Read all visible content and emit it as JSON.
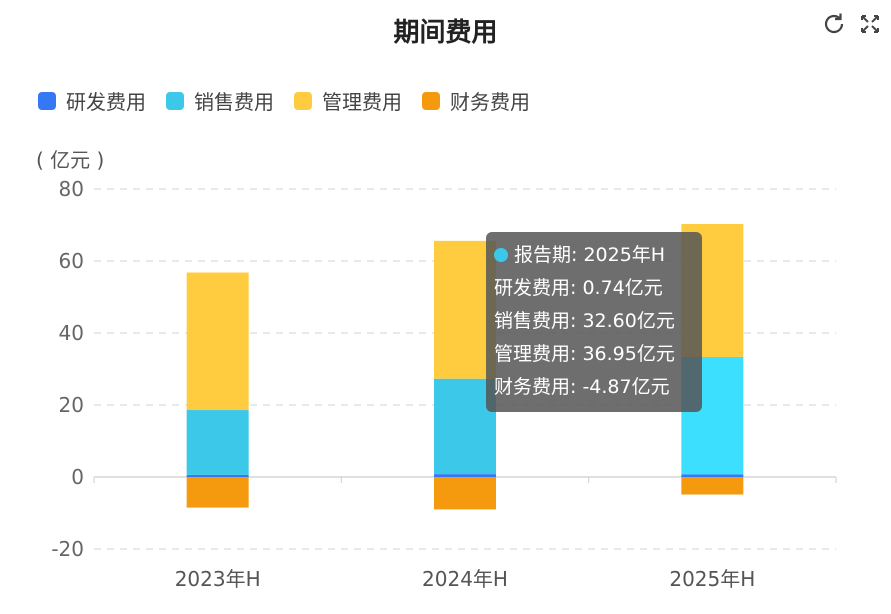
{
  "title": "期间费用",
  "unit_label": "( 亿元 )",
  "toolbar": {
    "refresh_icon": "refresh-icon",
    "fullscreen_icon": "fullscreen-icon"
  },
  "legend": [
    {
      "label": "研发费用",
      "color": "#3578F6"
    },
    {
      "label": "销售费用",
      "color": "#3CC8E8"
    },
    {
      "label": "管理费用",
      "color": "#FFCC40"
    },
    {
      "label": "财务费用",
      "color": "#F59A0F"
    }
  ],
  "tooltip": {
    "period": "报告期: 2025年H",
    "lines": [
      "研发费用: 0.74亿元",
      "销售费用: 32.60亿元",
      "管理费用: 36.95亿元",
      "财务费用: -4.87亿元"
    ],
    "dot_color": "#3CC8E8"
  },
  "chart_data": {
    "type": "bar",
    "stacked": true,
    "categories": [
      "2023年H",
      "2024年H",
      "2025年H"
    ],
    "ylim": [
      -20,
      80
    ],
    "yticks": [
      80,
      60,
      40,
      20,
      0,
      -20
    ],
    "ylabel": "( 亿元 )",
    "grid": true,
    "legend_position": "top-left",
    "highlighted_category": "2025年H",
    "series": [
      {
        "name": "研发费用",
        "values": [
          0.6,
          0.8,
          0.74
        ]
      },
      {
        "name": "销售费用",
        "values": [
          18.0,
          26.5,
          32.6
        ]
      },
      {
        "name": "管理费用",
        "values": [
          38.2,
          38.3,
          36.95
        ]
      },
      {
        "name": "财务费用",
        "values": [
          -8.5,
          -9.0,
          -4.87
        ]
      }
    ]
  }
}
